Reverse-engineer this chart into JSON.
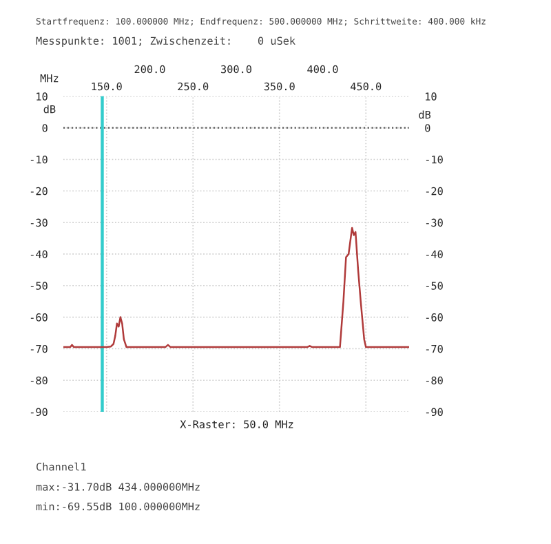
{
  "chart_data": {
    "type": "line",
    "title": "Startfrequenz: 100.000000 MHz; Endfrequenz: 500.000000 MHz; Schrittweite: 400.000 kHz",
    "subtitle": "Messpunkte: 1001; Zwischenzeit:    0 uSek",
    "xlabel": "MHz",
    "ylabel": "dB",
    "y2label": "dB",
    "annotations": [
      "X-Raster: 50.0 MHz",
      "Channel1",
      "max:-31.70dB 434.000000MHz",
      "min:-69.55dB 100.000000MHz"
    ],
    "series": [
      {
        "color": "#b03a3a",
        "x": [
          100,
          108,
          110,
          112,
          150,
          155,
          158,
          160,
          162,
          164,
          166,
          168,
          170,
          173,
          176,
          218,
          221,
          224,
          382,
          385,
          388,
          420,
          424,
          427,
          430,
          434,
          436,
          438,
          441,
          444,
          448,
          450,
          500
        ],
        "values": [
          -69.5,
          -69.5,
          -68.8,
          -69.5,
          -69.5,
          -69.3,
          -68.5,
          -66,
          -62,
          -63,
          -60,
          -62,
          -67,
          -69.5,
          -69.5,
          -69.5,
          -68.8,
          -69.5,
          -69.5,
          -69.1,
          -69.5,
          -69.5,
          -55,
          -41,
          -40,
          -31.7,
          -34,
          -33,
          -45,
          -55,
          -67,
          -69.5,
          -69.5
        ]
      }
    ],
    "xlim": [
      100,
      500
    ],
    "xticks": [
      {
        "value": 150,
        "label": "150.0"
      },
      {
        "value": 250,
        "label": "250.0"
      },
      {
        "value": 350,
        "label": "350.0"
      },
      {
        "value": 450,
        "label": "450.0"
      }
    ],
    "x2lim": [
      100,
      500
    ],
    "x2ticks": [
      {
        "value": 200,
        "label": "200.0"
      },
      {
        "value": 300,
        "label": "300.0"
      },
      {
        "value": 400,
        "label": "400.0"
      }
    ],
    "ylim": [
      -90,
      10
    ],
    "yticks": [
      -90,
      -80,
      -70,
      -60,
      -50,
      -40,
      -30,
      -20,
      -10,
      0,
      10
    ],
    "y2lim": [
      -90,
      10
    ],
    "y2ticks": [
      -90,
      -80,
      -70,
      -60,
      -50,
      -40,
      -30,
      -20,
      -10,
      0,
      10
    ],
    "ref_lines": [
      {
        "axis": "y",
        "value": 0,
        "color": "#555555",
        "line_style": "dotted"
      },
      {
        "axis": "x",
        "value": 145,
        "color": "#33cccc",
        "line_style": "solid"
      }
    ],
    "grid": true,
    "legend": false,
    "marker": "none",
    "line_style": "solid"
  }
}
